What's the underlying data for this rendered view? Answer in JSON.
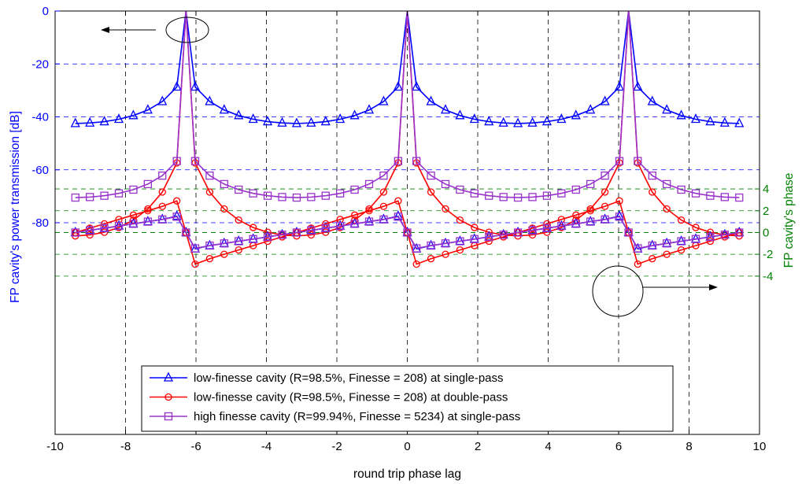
{
  "chart_data": {
    "type": "line",
    "xlabel": "round trip phase lag",
    "ylabel_left": "FP cavity's power transmission [dB]",
    "ylabel_right": "FP cavity's phase",
    "xlim": [
      -10,
      10
    ],
    "ylim_left": [
      -160,
      0
    ],
    "ylim_right": [
      -18.53,
      20.33
    ],
    "grid": true,
    "legend_position": "bottom-center",
    "x_ticks": [
      "-10",
      "-8",
      "-6",
      "-4",
      "-2",
      "0",
      "2",
      "4",
      "6",
      "8",
      "10"
    ],
    "y_left_ticks": [
      "0",
      "-20",
      "-40",
      "-60",
      "-80"
    ],
    "y_right_ticks": [
      "4",
      "2",
      "0",
      "-2",
      "-4"
    ],
    "x": [
      -9.4248,
      -9.0132,
      -8.6016,
      -8.19,
      -7.7784,
      -7.3668,
      -6.9552,
      -6.5436,
      -6.2832,
      -6.0228,
      -5.6112,
      -5.1996,
      -4.788,
      -4.3764,
      -3.9648,
      -3.5532,
      -3.1416,
      -2.73,
      -2.3184,
      -1.9068,
      -1.4952,
      -1.0836,
      -0.672,
      -0.2604,
      0.0,
      0.2604,
      0.672,
      1.0836,
      1.4952,
      1.9068,
      2.3184,
      2.73,
      3.1416,
      3.5532,
      3.9648,
      4.3764,
      4.788,
      5.1996,
      5.6112,
      6.0228,
      6.2832,
      6.5436,
      6.9552,
      7.3668,
      7.7784,
      8.19,
      8.6016,
      9.0132,
      9.4248
    ],
    "series": [
      {
        "name": "low-finesse cavity (R=98.5%, Finesse = 208) at single-pass",
        "axis": "left",
        "color": "#0000ff",
        "marker": "triangle",
        "values": [
          -42.5,
          -42.3,
          -41.8,
          -40.9,
          -39.5,
          -37.4,
          -34.2,
          -28.7,
          0,
          -28.7,
          -34.2,
          -37.4,
          -39.5,
          -40.9,
          -41.8,
          -42.3,
          -42.5,
          -42.3,
          -41.8,
          -40.9,
          -39.5,
          -37.4,
          -34.2,
          -28.7,
          0,
          -28.7,
          -34.2,
          -37.4,
          -39.5,
          -40.9,
          -41.8,
          -42.3,
          -42.5,
          -42.3,
          -41.8,
          -40.9,
          -39.5,
          -37.4,
          -34.2,
          -28.7,
          0,
          -28.7,
          -34.2,
          -37.4,
          -39.5,
          -40.9,
          -41.8,
          -42.3,
          -42.5
        ]
      },
      {
        "name": "low-finesse cavity (R=98.5%, Finesse = 208) at double-pass",
        "axis": "left",
        "color": "#ff0000",
        "marker": "circle",
        "values": [
          -85.0,
          -84.6,
          -83.6,
          -81.8,
          -79.0,
          -74.8,
          -68.4,
          -57.4,
          0,
          -57.4,
          -68.4,
          -74.8,
          -79.0,
          -81.8,
          -83.6,
          -84.6,
          -85.0,
          -84.6,
          -83.6,
          -81.8,
          -79.0,
          -74.8,
          -68.4,
          -57.4,
          0,
          -57.4,
          -68.4,
          -74.8,
          -79.0,
          -81.8,
          -83.6,
          -84.6,
          -85.0,
          -84.6,
          -83.6,
          -81.8,
          -79.0,
          -74.8,
          -68.4,
          -57.4,
          0,
          -57.4,
          -68.4,
          -74.8,
          -79.0,
          -81.8,
          -83.6,
          -84.6,
          -85.0
        ]
      },
      {
        "name": "high finesse cavity (R=99.94%, Finesse = 5234) at single-pass",
        "axis": "left",
        "color": "#9933cc",
        "marker": "square",
        "values": [
          -70.5,
          -70.3,
          -69.8,
          -68.9,
          -67.5,
          -65.4,
          -62.2,
          -56.7,
          0,
          -56.7,
          -62.2,
          -65.4,
          -67.5,
          -68.9,
          -69.8,
          -70.3,
          -70.5,
          -70.3,
          -69.8,
          -68.9,
          -67.5,
          -65.4,
          -62.2,
          -56.7,
          0,
          -56.7,
          -62.2,
          -65.4,
          -67.5,
          -68.9,
          -69.8,
          -70.3,
          -70.5,
          -70.3,
          -69.8,
          -68.9,
          -67.5,
          -65.4,
          -62.2,
          -56.7,
          0,
          -56.7,
          -62.2,
          -65.4,
          -67.5,
          -68.9,
          -69.8,
          -70.3,
          -70.5
        ]
      },
      {
        "name": "low-finesse cavity (R=98.5%, Finesse = 208) at single-pass",
        "axis": "right",
        "color": "#0000ff",
        "marker": "triangle",
        "values": [
          0.0,
          0.2,
          0.4,
          0.6,
          0.8,
          1.0,
          1.2,
          1.5,
          0.0,
          -1.5,
          -1.2,
          -1.0,
          -0.8,
          -0.6,
          -0.4,
          -0.2,
          0.0,
          0.2,
          0.4,
          0.6,
          0.8,
          1.0,
          1.2,
          1.5,
          0.0,
          -1.5,
          -1.2,
          -1.0,
          -0.8,
          -0.6,
          -0.4,
          -0.2,
          0.0,
          0.2,
          0.4,
          0.6,
          0.8,
          1.0,
          1.2,
          1.5,
          0.0,
          -1.5,
          -1.2,
          -1.0,
          -0.8,
          -0.6,
          -0.4,
          -0.2,
          0.0
        ]
      },
      {
        "name": "low-finesse cavity (R=98.5%, Finesse = 208) at double-pass",
        "axis": "right",
        "color": "#ff0000",
        "marker": "circle",
        "values": [
          0.0,
          0.4,
          0.8,
          1.2,
          1.6,
          2.0,
          2.4,
          2.9,
          0.0,
          -2.9,
          -2.4,
          -2.0,
          -1.6,
          -1.2,
          -0.8,
          -0.4,
          0.0,
          0.4,
          0.8,
          1.2,
          1.6,
          2.0,
          2.4,
          2.9,
          0.0,
          -2.9,
          -2.4,
          -2.0,
          -1.6,
          -1.2,
          -0.8,
          -0.4,
          0.0,
          0.4,
          0.8,
          1.2,
          1.6,
          2.0,
          2.4,
          2.9,
          0.0,
          -2.9,
          -2.4,
          -2.0,
          -1.6,
          -1.2,
          -0.8,
          -0.4,
          0.0
        ]
      },
      {
        "name": "high finesse cavity (R=99.94%, Finesse = 5234) at single-pass",
        "axis": "right",
        "color": "#9933cc",
        "marker": "square",
        "values": [
          0.0,
          0.2,
          0.4,
          0.6,
          0.8,
          1.0,
          1.2,
          1.45,
          0.0,
          -1.45,
          -1.2,
          -1.0,
          -0.8,
          -0.6,
          -0.4,
          -0.2,
          0.0,
          0.2,
          0.4,
          0.6,
          0.8,
          1.0,
          1.2,
          1.45,
          0.0,
          -1.45,
          -1.2,
          -1.0,
          -0.8,
          -0.6,
          -0.4,
          -0.2,
          0.0,
          0.2,
          0.4,
          0.6,
          0.8,
          1.0,
          1.2,
          1.45,
          0.0,
          -1.45,
          -1.2,
          -1.0,
          -0.8,
          -0.6,
          -0.4,
          -0.2,
          0.0
        ]
      }
    ],
    "legend": [
      {
        "label": "low-finesse cavity (R=98.5%, Finesse = 208) at single-pass",
        "color": "#0000ff",
        "marker": "triangle"
      },
      {
        "label": "low-finesse cavity (R=98.5%, Finesse = 208) at double-pass",
        "color": "#ff0000",
        "marker": "circle"
      },
      {
        "label": "high finesse cavity (R=99.94%, Finesse = 5234) at single-pass",
        "color": "#9933cc",
        "marker": "square"
      }
    ],
    "annotations": [
      {
        "shape": "ellipse-with-arrow",
        "points_to_axis": "left",
        "arrow_direction": "left"
      },
      {
        "shape": "circle-with-arrow",
        "points_to_axis": "right",
        "arrow_direction": "right"
      }
    ],
    "colors": {
      "left_axis": "#0000ff",
      "right_axis": "#008000",
      "grid_left": "#0000ff",
      "grid_right": "#008000",
      "grid_x": "#000000"
    }
  }
}
